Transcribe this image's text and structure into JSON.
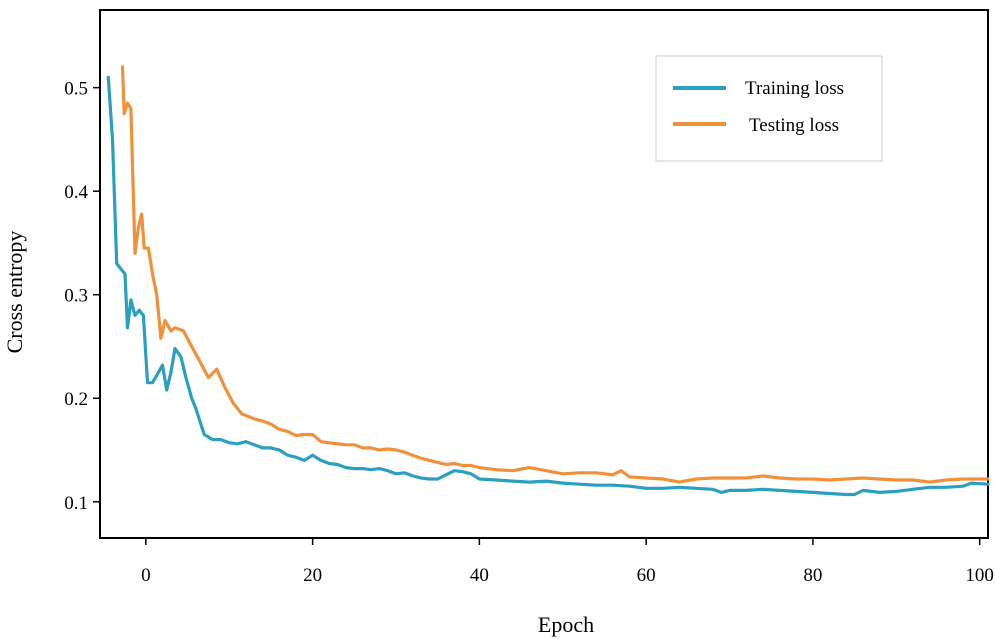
{
  "chart_data": {
    "type": "line",
    "title": "",
    "xlabel": "Epoch",
    "ylabel": "Cross entropy",
    "xlim": [
      -5.5,
      101
    ],
    "ylim": [
      0.065,
      0.575
    ],
    "xticks": [
      0,
      20,
      40,
      60,
      80,
      100
    ],
    "yticks": [
      0.1,
      0.2,
      0.3,
      0.4,
      0.5
    ],
    "xtick_labels": [
      "0",
      "20",
      "40",
      "60",
      "80",
      "100"
    ],
    "ytick_labels": [
      "0.1",
      "0.2",
      "0.3",
      "0.4",
      "0.5"
    ],
    "grid": false,
    "legend_position": "top-right",
    "series": [
      {
        "name": "Training loss",
        "color": "#2a9fc0",
        "points": [
          [
            -4.5,
            0.51
          ],
          [
            -4.0,
            0.45
          ],
          [
            -3.5,
            0.33
          ],
          [
            -3.0,
            0.325
          ],
          [
            -2.5,
            0.32
          ],
          [
            -2.2,
            0.268
          ],
          [
            -1.8,
            0.295
          ],
          [
            -1.3,
            0.28
          ],
          [
            -0.8,
            0.285
          ],
          [
            -0.3,
            0.28
          ],
          [
            0.2,
            0.215
          ],
          [
            0.8,
            0.215
          ],
          [
            1.5,
            0.225
          ],
          [
            2.0,
            0.232
          ],
          [
            2.5,
            0.208
          ],
          [
            3.0,
            0.225
          ],
          [
            3.5,
            0.248
          ],
          [
            4.2,
            0.24
          ],
          [
            4.8,
            0.22
          ],
          [
            5.5,
            0.2
          ],
          [
            6.0,
            0.19
          ],
          [
            7.0,
            0.165
          ],
          [
            8.0,
            0.16
          ],
          [
            9.0,
            0.16
          ],
          [
            10.0,
            0.157
          ],
          [
            11.0,
            0.156
          ],
          [
            12.0,
            0.158
          ],
          [
            13.0,
            0.155
          ],
          [
            14.0,
            0.152
          ],
          [
            15.0,
            0.152
          ],
          [
            16.0,
            0.15
          ],
          [
            17.0,
            0.145
          ],
          [
            18.0,
            0.143
          ],
          [
            19.0,
            0.14
          ],
          [
            20.0,
            0.145
          ],
          [
            21.0,
            0.14
          ],
          [
            22.0,
            0.137
          ],
          [
            23.0,
            0.136
          ],
          [
            24.0,
            0.133
          ],
          [
            25.0,
            0.132
          ],
          [
            26.0,
            0.132
          ],
          [
            27.0,
            0.131
          ],
          [
            28.0,
            0.132
          ],
          [
            29.0,
            0.13
          ],
          [
            30.0,
            0.127
          ],
          [
            31.0,
            0.128
          ],
          [
            32.0,
            0.125
          ],
          [
            33.0,
            0.123
          ],
          [
            34.0,
            0.122
          ],
          [
            35.0,
            0.122
          ],
          [
            36.0,
            0.126
          ],
          [
            37.0,
            0.13
          ],
          [
            38.0,
            0.129
          ],
          [
            39.0,
            0.127
          ],
          [
            40.0,
            0.122
          ],
          [
            42.0,
            0.121
          ],
          [
            44.0,
            0.12
          ],
          [
            46.0,
            0.119
          ],
          [
            48.0,
            0.12
          ],
          [
            50.0,
            0.118
          ],
          [
            52.0,
            0.117
          ],
          [
            54.0,
            0.116
          ],
          [
            56.0,
            0.116
          ],
          [
            58.0,
            0.115
          ],
          [
            60.0,
            0.113
          ],
          [
            62.0,
            0.113
          ],
          [
            64.0,
            0.114
          ],
          [
            66.0,
            0.113
          ],
          [
            68.0,
            0.112
          ],
          [
            69.0,
            0.109
          ],
          [
            70.0,
            0.111
          ],
          [
            72.0,
            0.111
          ],
          [
            74.0,
            0.112
          ],
          [
            76.0,
            0.111
          ],
          [
            78.0,
            0.11
          ],
          [
            80.0,
            0.109
          ],
          [
            82.0,
            0.108
          ],
          [
            84.0,
            0.107
          ],
          [
            85.0,
            0.107
          ],
          [
            86.0,
            0.111
          ],
          [
            88.0,
            0.109
          ],
          [
            90.0,
            0.11
          ],
          [
            92.0,
            0.112
          ],
          [
            94.0,
            0.114
          ],
          [
            96.0,
            0.114
          ],
          [
            98.0,
            0.115
          ],
          [
            99.0,
            0.118
          ],
          [
            101.0,
            0.117
          ]
        ]
      },
      {
        "name": "Testing loss",
        "color": "#f0913a",
        "points": [
          [
            -2.8,
            0.52
          ],
          [
            -2.6,
            0.475
          ],
          [
            -2.2,
            0.485
          ],
          [
            -1.8,
            0.48
          ],
          [
            -1.3,
            0.34
          ],
          [
            -0.9,
            0.365
          ],
          [
            -0.5,
            0.378
          ],
          [
            -0.2,
            0.345
          ],
          [
            0.3,
            0.345
          ],
          [
            0.8,
            0.32
          ],
          [
            1.3,
            0.3
          ],
          [
            1.8,
            0.258
          ],
          [
            2.3,
            0.275
          ],
          [
            3.0,
            0.265
          ],
          [
            3.5,
            0.268
          ],
          [
            4.5,
            0.265
          ],
          [
            5.5,
            0.25
          ],
          [
            6.5,
            0.235
          ],
          [
            7.5,
            0.22
          ],
          [
            8.5,
            0.228
          ],
          [
            9.5,
            0.21
          ],
          [
            10.5,
            0.195
          ],
          [
            11.5,
            0.185
          ],
          [
            13.0,
            0.18
          ],
          [
            14.0,
            0.178
          ],
          [
            15.0,
            0.175
          ],
          [
            16.0,
            0.17
          ],
          [
            17.0,
            0.168
          ],
          [
            18.0,
            0.164
          ],
          [
            19.0,
            0.165
          ],
          [
            20.0,
            0.165
          ],
          [
            21.0,
            0.158
          ],
          [
            22.0,
            0.157
          ],
          [
            23.0,
            0.156
          ],
          [
            24.0,
            0.155
          ],
          [
            25.0,
            0.155
          ],
          [
            26.0,
            0.152
          ],
          [
            27.0,
            0.152
          ],
          [
            28.0,
            0.15
          ],
          [
            29.0,
            0.151
          ],
          [
            30.0,
            0.15
          ],
          [
            31.0,
            0.148
          ],
          [
            32.0,
            0.145
          ],
          [
            33.0,
            0.142
          ],
          [
            34.0,
            0.14
          ],
          [
            35.0,
            0.138
          ],
          [
            36.0,
            0.136
          ],
          [
            37.0,
            0.137
          ],
          [
            38.0,
            0.135
          ],
          [
            39.0,
            0.135
          ],
          [
            40.0,
            0.133
          ],
          [
            42.0,
            0.131
          ],
          [
            44.0,
            0.13
          ],
          [
            46.0,
            0.133
          ],
          [
            48.0,
            0.13
          ],
          [
            50.0,
            0.127
          ],
          [
            52.0,
            0.128
          ],
          [
            54.0,
            0.128
          ],
          [
            56.0,
            0.126
          ],
          [
            57.0,
            0.13
          ],
          [
            58.0,
            0.124
          ],
          [
            60.0,
            0.123
          ],
          [
            62.0,
            0.122
          ],
          [
            64.0,
            0.119
          ],
          [
            66.0,
            0.122
          ],
          [
            68.0,
            0.123
          ],
          [
            70.0,
            0.123
          ],
          [
            72.0,
            0.123
          ],
          [
            74.0,
            0.125
          ],
          [
            76.0,
            0.123
          ],
          [
            78.0,
            0.122
          ],
          [
            80.0,
            0.122
          ],
          [
            82.0,
            0.121
          ],
          [
            84.0,
            0.122
          ],
          [
            86.0,
            0.123
          ],
          [
            88.0,
            0.122
          ],
          [
            90.0,
            0.121
          ],
          [
            92.0,
            0.121
          ],
          [
            94.0,
            0.119
          ],
          [
            96.0,
            0.121
          ],
          [
            98.0,
            0.122
          ],
          [
            101.0,
            0.122
          ]
        ]
      }
    ]
  }
}
